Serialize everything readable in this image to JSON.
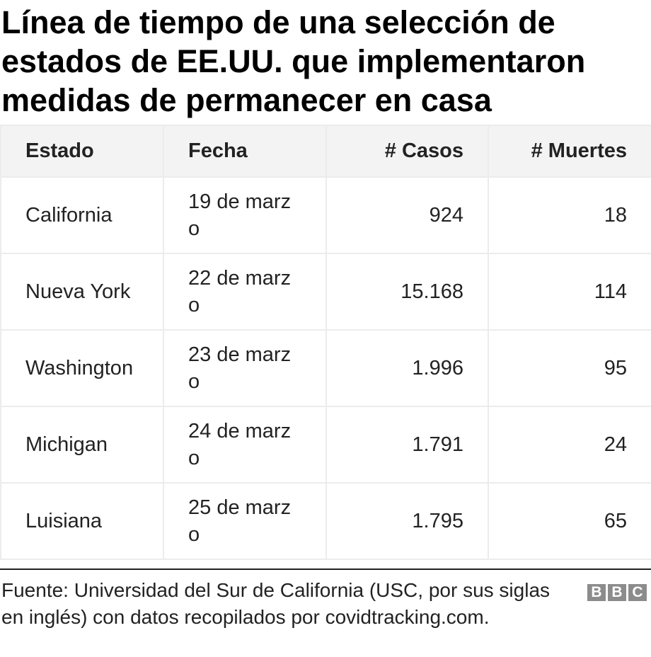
{
  "title": "Línea de tiempo de una selección de estados de EE.UU. que implementaron medidas de permanecer en casa",
  "chart_data": {
    "type": "table",
    "columns": [
      "Estado",
      "Fecha",
      "# Casos",
      "# Muertes"
    ],
    "rows": [
      [
        "California",
        "19 de marzo",
        "924",
        "18"
      ],
      [
        "Nueva York",
        "22 de marzo",
        "15.168",
        "114"
      ],
      [
        "Washington",
        "23 de marzo",
        "1.996",
        "95"
      ],
      [
        "Michigan",
        "24 de marzo",
        "1.791",
        "24"
      ],
      [
        "Luisiana",
        "25 de marzo",
        "1.795",
        "65"
      ]
    ]
  },
  "source": "Fuente: Universidad del Sur de California (USC, por sus siglas en inglés) con datos recopilados por covidtracking.com.",
  "logo": {
    "letters": [
      "B",
      "B",
      "C"
    ],
    "color": "#8c8c8c"
  }
}
